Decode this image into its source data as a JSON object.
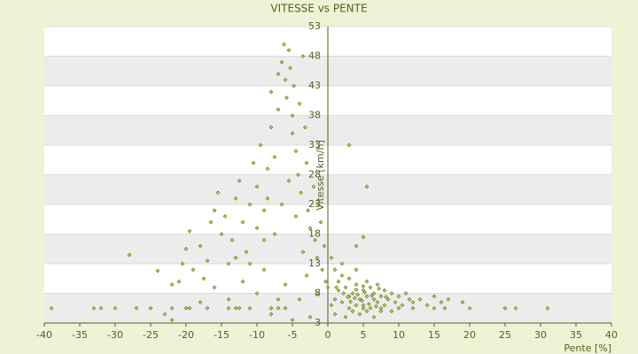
{
  "chart_data": {
    "type": "scatter",
    "title": "VITESSE vs PENTE",
    "x_label": "Pente [%]",
    "y_label": "Vitesse [km/h]",
    "xlim": [
      -40,
      40
    ],
    "xticks": [
      -40,
      -35,
      -30,
      -25,
      -20,
      -15,
      -10,
      -5,
      0,
      5,
      10,
      15,
      20,
      25,
      30,
      35,
      40
    ],
    "ylim": [
      3,
      53
    ],
    "yticks": [
      3,
      8,
      13,
      18,
      23,
      28,
      33,
      38,
      43,
      48,
      53
    ],
    "grid": true,
    "color": "#6b7a12",
    "series": [
      {
        "name": "VITESSE vs PENTE",
        "color": "#6b7a12",
        "x": [
          -39,
          -33,
          -32,
          -30,
          -27,
          -25,
          -22,
          -20,
          -19.5,
          -17,
          -14,
          -13,
          -12.5,
          -11,
          -8,
          -7,
          -6,
          5,
          7.5,
          10,
          12,
          15,
          16.5,
          20,
          25,
          26.5,
          31,
          -28,
          -24,
          -22,
          -21,
          -20.5,
          -20,
          -19.5,
          -19,
          -18,
          -17.5,
          -17,
          -16.5,
          -16,
          -15.5,
          -15,
          -14.5,
          -14,
          -13.5,
          -13,
          -12.5,
          -12,
          -11.5,
          -11,
          -10.5,
          -10,
          -9.5,
          -9,
          -8.5,
          -8,
          -8,
          -7.5,
          -7,
          -7,
          -6.5,
          -6.2,
          -6,
          -5.8,
          -5.5,
          -5.3,
          -5,
          -5,
          -4.8,
          -4.5,
          -4.2,
          -4,
          -3.8,
          -3.5,
          -3.2,
          -3,
          -2.8,
          -2.5,
          -2,
          -1.8,
          -1.5,
          -1,
          -0.8,
          -0.5,
          -0.3,
          0,
          -23,
          -22,
          -10,
          -9,
          -8,
          -7,
          -6,
          -5,
          -4,
          -3,
          -2.5,
          -1.5,
          -12,
          -14,
          -16,
          -18,
          -9,
          -7.5,
          -6.5,
          -5.5,
          -4.5,
          -3.5,
          -8.5,
          -10,
          -11,
          -13,
          3,
          5.5,
          5,
          4,
          2,
          1,
          0.5,
          1,
          1.5,
          2,
          2.5,
          3,
          3,
          3.5,
          4,
          4,
          4.5,
          5,
          5,
          5.5,
          5.5,
          6,
          6,
          6.5,
          6.5,
          7,
          7,
          7.5,
          8,
          8,
          8.5,
          9,
          9.5,
          10,
          10.5,
          11,
          11.5,
          12,
          13,
          14,
          15,
          16,
          17,
          19,
          2,
          3,
          4,
          1.5,
          0.5,
          1,
          2.5,
          3.5,
          4.5,
          5.5,
          6.5,
          7.5,
          9,
          4.2,
          4.8,
          5.2,
          5.8,
          6.2,
          3.8,
          2.2,
          1.2,
          7.2,
          8.2,
          6.8,
          5,
          4,
          3.2,
          2.8
        ],
        "values": [
          5.5,
          5.5,
          5.5,
          5.5,
          5.5,
          5.5,
          5.5,
          5.5,
          5.5,
          5.5,
          5.5,
          5.5,
          5.5,
          5.5,
          5.5,
          5.5,
          5.5,
          5.5,
          5.5,
          5.5,
          5.5,
          5.5,
          5.5,
          5.5,
          5.5,
          5.5,
          5.5,
          14.5,
          11.8,
          9.5,
          10,
          13,
          15.5,
          18.5,
          12,
          16,
          10.5,
          13.5,
          20,
          22,
          25,
          18,
          21,
          13,
          17,
          24,
          27,
          20,
          15,
          23,
          30,
          26,
          33,
          22,
          29,
          36,
          42,
          31,
          39,
          45,
          47,
          50,
          44,
          41,
          49,
          46,
          38,
          35,
          43,
          32,
          28,
          40,
          25,
          48,
          36,
          30,
          22,
          19,
          26,
          17,
          14,
          20,
          12,
          16,
          10,
          9,
          4.5,
          3.5,
          8,
          12,
          4.5,
          7,
          9.5,
          3.5,
          7,
          11,
          4,
          8,
          10,
          7,
          9,
          6.5,
          17,
          18,
          23,
          27,
          21,
          15,
          24,
          19,
          13,
          14,
          33,
          26,
          17.5,
          16,
          13,
          12,
          14,
          7,
          8.5,
          6.5,
          9,
          7.5,
          5.5,
          8,
          6,
          9.5,
          7,
          8.5,
          6,
          10,
          7.5,
          5.5,
          9,
          7,
          8,
          6.5,
          9.5,
          7.5,
          8.5,
          6,
          7,
          8,
          6.5,
          7.5,
          6,
          8,
          7,
          6.5,
          7,
          6,
          7.5,
          6.5,
          7,
          6.5,
          11,
          10.5,
          12,
          10,
          6,
          4.5,
          4,
          5,
          4.5,
          5,
          4,
          5,
          5,
          7.8,
          6.8,
          8.2,
          6.2,
          7.6,
          7.2,
          8,
          9,
          8.8,
          7.4,
          5.8,
          9.2,
          8.6,
          6.6,
          7.4
        ]
      }
    ]
  }
}
